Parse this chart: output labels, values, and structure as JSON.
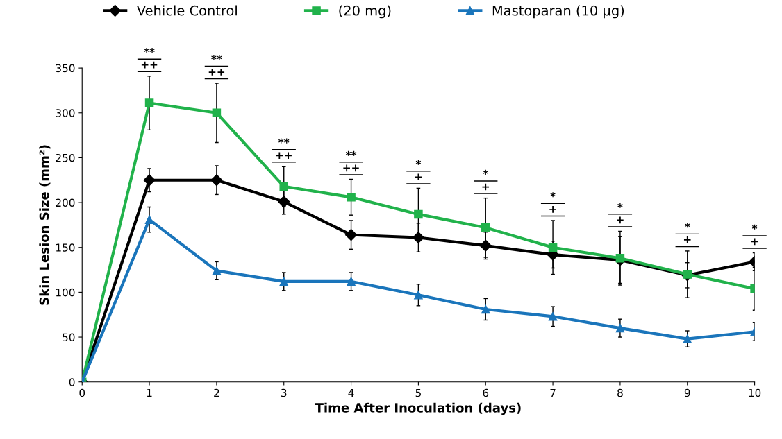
{
  "chart_data": {
    "type": "line",
    "xlabel": "Time After Inoculation (days)",
    "ylabel": "Skin Lesion Size (mm²)",
    "x": [
      0,
      1,
      2,
      3,
      4,
      5,
      6,
      7,
      8,
      9,
      10
    ],
    "series": [
      {
        "name": "Vehicle Control",
        "color": "#000000",
        "marker": "diamond",
        "values": [
          0,
          225,
          225,
          201,
          164,
          161,
          152,
          142,
          136,
          119,
          134
        ],
        "errors": [
          null,
          13,
          16,
          14,
          16,
          16,
          15,
          15,
          26,
          14,
          10
        ]
      },
      {
        "name": "(20 mg)",
        "color": "#21b24b",
        "marker": "square",
        "values": [
          0,
          311,
          300,
          218,
          206,
          187,
          172,
          150,
          138,
          120,
          104
        ],
        "errors": [
          null,
          30,
          33,
          22,
          20,
          29,
          33,
          30,
          30,
          26,
          24
        ]
      },
      {
        "name": "Mastoparan (10 µg)",
        "color": "#1a75bb",
        "marker": "triangle",
        "values": [
          0,
          181,
          124,
          112,
          112,
          97,
          81,
          73,
          60,
          48,
          56
        ],
        "errors": [
          null,
          14,
          10,
          10,
          10,
          12,
          12,
          11,
          10,
          9,
          10
        ]
      }
    ],
    "xlim": [
      0,
      10
    ],
    "xticks": [
      0,
      1,
      2,
      3,
      4,
      5,
      6,
      7,
      8,
      9,
      10
    ],
    "ylim": [
      0,
      350
    ],
    "yticks": [
      0,
      50,
      100,
      150,
      200,
      250,
      300,
      350
    ],
    "grid": false,
    "legend": "top",
    "line_style": "solid",
    "annotations": [
      "**",
      "++",
      "**",
      "++",
      "**",
      "++",
      "**",
      "++",
      "*",
      "+",
      "*",
      "+",
      "*",
      "+",
      "*",
      "+",
      "*",
      "+",
      "*",
      "+"
    ]
  }
}
